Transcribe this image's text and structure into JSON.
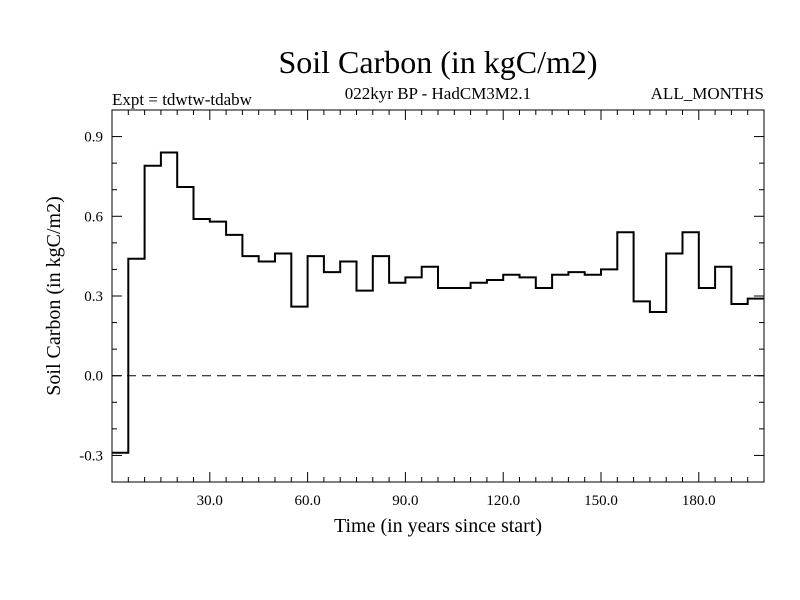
{
  "chart_data": {
    "type": "line",
    "title": "Soil Carbon (in kgC/m2)",
    "subtitle": "022kyr BP - HadCM3M2.1",
    "left_label": "Expt = tdwtw-tdabw",
    "right_label": "ALL_MONTHS",
    "xlabel": "Time (in years since start)",
    "ylabel": "Soil Carbon (in kgC/m2)",
    "xlim": [
      0,
      200
    ],
    "ylim": [
      -0.4,
      1.0
    ],
    "x_ticks": [
      30,
      60,
      90,
      120,
      150,
      180
    ],
    "x_tick_labels": [
      "30.0",
      "60.0",
      "90.0",
      "120.0",
      "150.0",
      "180.0"
    ],
    "y_ticks": [
      -0.3,
      0.0,
      0.3,
      0.6,
      0.9
    ],
    "y_tick_labels": [
      "-0.3",
      "0.0",
      "0.3",
      "0.6",
      "0.9"
    ],
    "grid": false,
    "zero_line": "dashed",
    "step_edges": [
      0,
      5,
      10,
      15,
      20,
      25,
      30,
      35,
      40,
      45,
      50,
      55,
      60,
      65,
      70,
      75,
      80,
      85,
      90,
      95,
      100,
      105,
      110,
      115,
      120,
      125,
      130,
      135,
      140,
      145,
      150,
      155,
      160,
      165,
      170,
      175,
      180,
      185,
      190,
      195,
      200
    ],
    "values": [
      -0.29,
      0.44,
      0.79,
      0.84,
      0.71,
      0.59,
      0.58,
      0.53,
      0.45,
      0.43,
      0.46,
      0.26,
      0.45,
      0.39,
      0.43,
      0.32,
      0.45,
      0.35,
      0.37,
      0.41,
      0.33,
      0.33,
      0.35,
      0.36,
      0.38,
      0.37,
      0.33,
      0.38,
      0.39,
      0.38,
      0.4,
      0.54,
      0.28,
      0.24,
      0.46,
      0.54,
      0.33,
      0.41,
      0.27,
      0.29
    ]
  }
}
